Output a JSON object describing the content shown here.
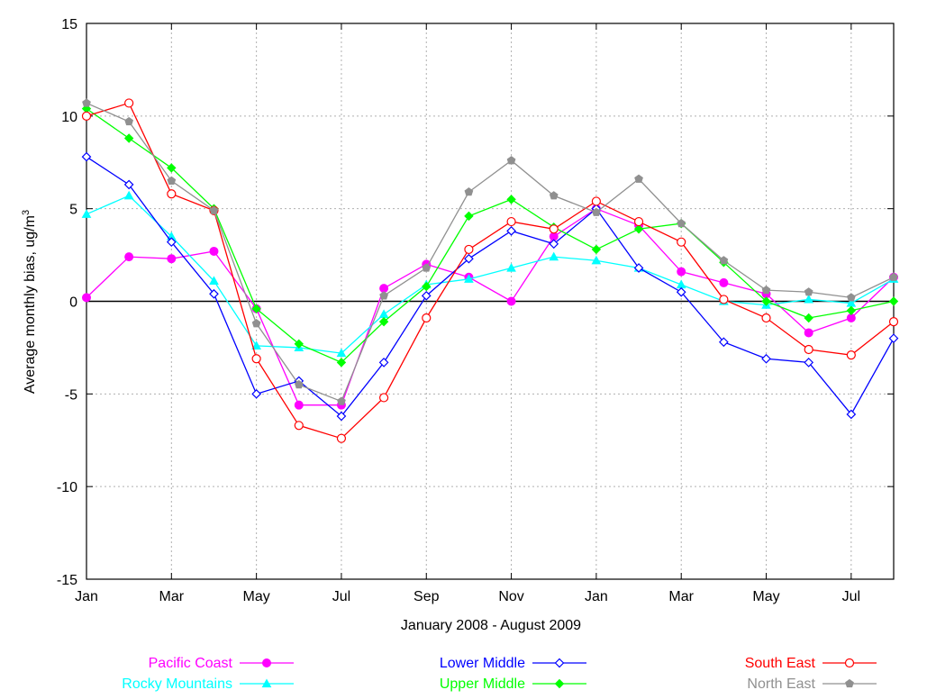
{
  "chart_data": {
    "type": "line",
    "title": "",
    "xlabel": "January 2008 - August 2009",
    "ylabel": "Average monthly bias, ug/m",
    "ylabel_superscript": "3",
    "ylim": [
      -15,
      15
    ],
    "yticks": [
      -15,
      -10,
      -5,
      0,
      5,
      10,
      15
    ],
    "xlim": [
      1,
      20
    ],
    "xtick_positions": [
      1,
      3,
      5,
      7,
      9,
      11,
      13,
      15,
      17,
      19
    ],
    "xtick_labels": [
      "Jan",
      "Mar",
      "May",
      "Jul",
      "Sep",
      "Nov",
      "Jan",
      "Mar",
      "May",
      "Jul"
    ],
    "x": [
      1,
      2,
      3,
      4,
      5,
      6,
      7,
      8,
      9,
      10,
      11,
      12,
      13,
      14,
      15,
      16,
      17,
      18,
      19,
      20
    ],
    "grid": true,
    "zero_line": true,
    "legend_position": "bottom",
    "series": [
      {
        "name": "Pacific Coast",
        "color": "#ff00ff",
        "marker": "filled-circle",
        "values": [
          0.2,
          2.4,
          2.3,
          2.7,
          -0.4,
          -5.6,
          -5.6,
          0.7,
          2.0,
          1.3,
          0.0,
          3.5,
          5.0,
          4.1,
          1.6,
          1.0,
          0.4,
          -1.7,
          -0.9,
          1.3
        ]
      },
      {
        "name": "Rocky Mountains",
        "color": "#00ffff",
        "marker": "filled-triangle",
        "values": [
          4.7,
          5.7,
          3.5,
          1.1,
          -2.4,
          -2.5,
          -2.8,
          -0.7,
          0.9,
          1.2,
          1.8,
          2.4,
          2.2,
          1.8,
          0.9,
          0.0,
          -0.2,
          0.1,
          -0.1,
          1.2
        ]
      },
      {
        "name": "Lower Middle",
        "color": "#0000ff",
        "marker": "open-diamond",
        "values": [
          7.8,
          6.3,
          3.2,
          0.4,
          -5.0,
          -4.3,
          -6.2,
          -3.3,
          0.3,
          2.3,
          3.8,
          3.1,
          5.0,
          1.8,
          0.5,
          -2.2,
          -3.1,
          -3.3,
          -6.1,
          -2.0
        ]
      },
      {
        "name": "Upper Middle",
        "color": "#00ff00",
        "marker": "filled-diamond",
        "values": [
          10.4,
          8.8,
          7.2,
          5.0,
          -0.4,
          -2.3,
          -3.3,
          -1.1,
          0.8,
          4.6,
          5.5,
          4.0,
          2.8,
          3.9,
          4.2,
          2.1,
          0.0,
          -0.9,
          -0.5,
          0.0
        ]
      },
      {
        "name": "South East",
        "color": "#ff0000",
        "marker": "open-circle",
        "values": [
          10.0,
          10.7,
          5.8,
          4.9,
          -3.1,
          -6.7,
          -7.4,
          -5.2,
          -0.9,
          2.8,
          4.3,
          3.9,
          5.4,
          4.3,
          3.2,
          0.1,
          -0.9,
          -2.6,
          -2.9,
          -1.1
        ]
      },
      {
        "name": "North East",
        "color": "#909090",
        "marker": "filled-pentagon",
        "values": [
          10.7,
          9.7,
          6.5,
          4.9,
          -1.2,
          -4.5,
          -5.4,
          0.3,
          1.8,
          5.9,
          7.6,
          5.7,
          4.8,
          6.6,
          4.2,
          2.2,
          0.6,
          0.5,
          0.2,
          1.3
        ]
      }
    ]
  }
}
